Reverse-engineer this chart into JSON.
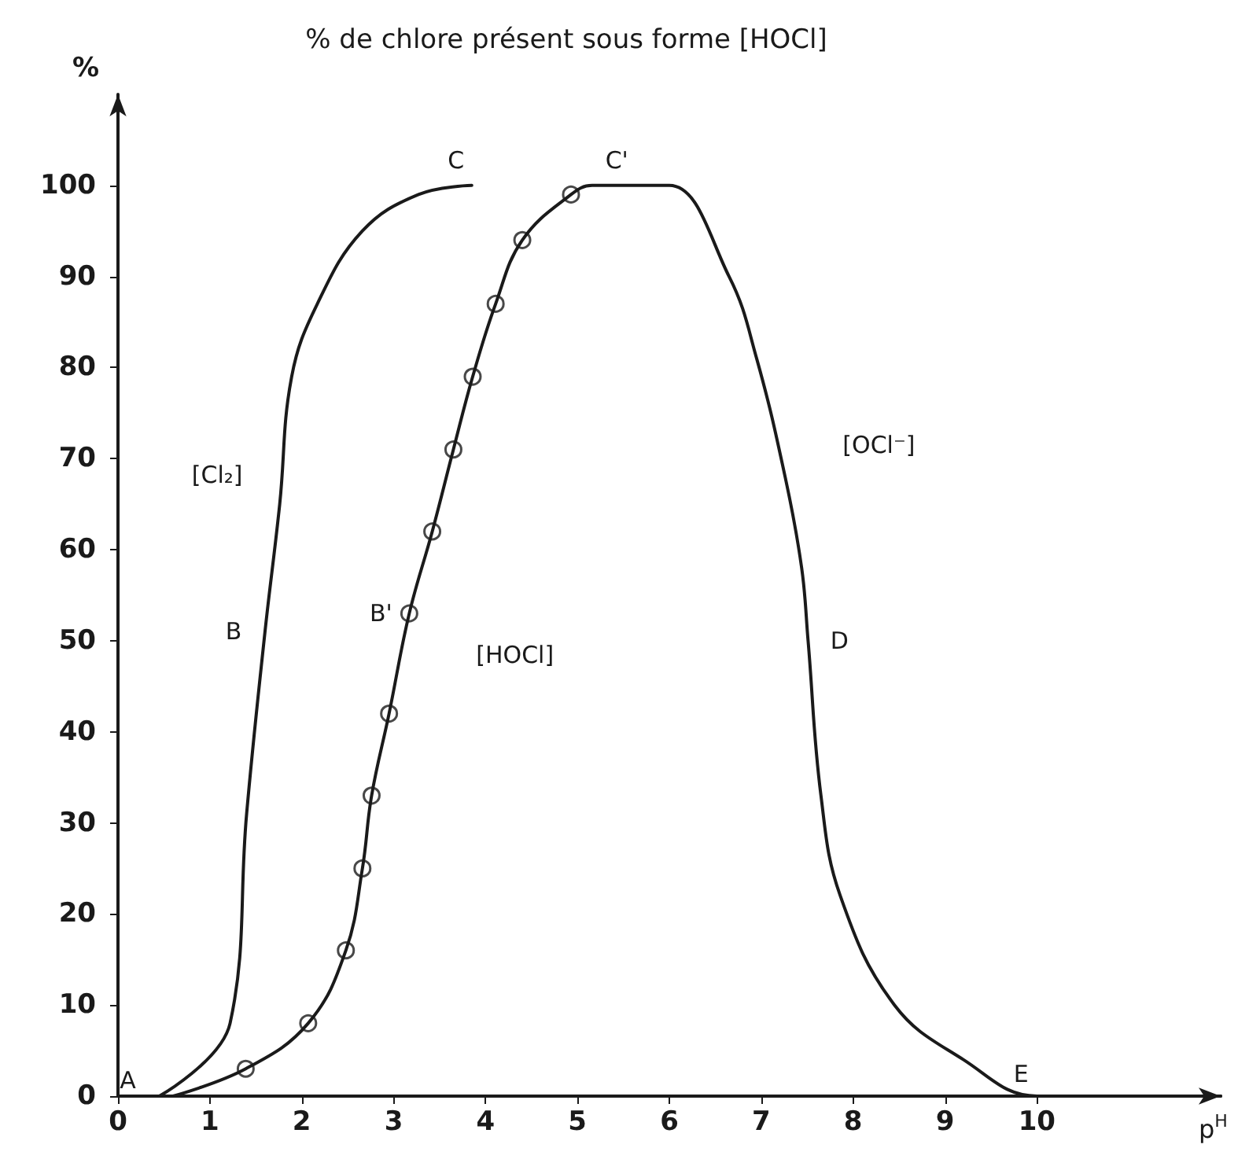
{
  "chart_data": {
    "type": "line",
    "title": "% de chlore présent sous forme [HOCl]",
    "xlabel": "p$^{H}$",
    "ylabel": "%",
    "xlim": [
      0,
      12
    ],
    "ylim": [
      0,
      110
    ],
    "xticks": [
      0,
      1,
      2,
      3,
      4,
      5,
      6,
      7,
      8,
      9,
      10
    ],
    "yticks": [
      0,
      10,
      20,
      30,
      40,
      50,
      60,
      70,
      80,
      90,
      100
    ],
    "grid": false,
    "line_style": "solid",
    "series": [
      {
        "color": "#1a1a1a",
        "marker": "none",
        "x": [
          0.45,
          1.22,
          1.4,
          1.6,
          1.76,
          1.89,
          2.17,
          2.66,
          3.27,
          3.85
        ],
        "values": [
          0,
          8,
          31,
          51,
          65,
          79,
          87,
          95,
          99,
          100
        ]
      },
      {
        "color": "#1a1a1a",
        "marker": "none",
        "x": [
          0.6,
          1.39,
          2.07,
          2.48,
          2.66,
          2.76,
          2.95,
          3.17,
          3.42,
          3.65,
          3.86,
          4.11,
          4.4,
          4.93,
          5.16,
          5.6,
          6,
          6.65,
          6.95,
          7.26,
          7.44,
          7.51,
          7.65,
          7.86,
          8.45,
          9.2,
          10,
          12
        ],
        "values": [
          0,
          3,
          8,
          16,
          25,
          33,
          42,
          53,
          62,
          71,
          79,
          87,
          94,
          99,
          100,
          100,
          100,
          90,
          81,
          68,
          58,
          50,
          33,
          22,
          10,
          4,
          0,
          0
        ]
      },
      {
        "type": "scatter",
        "color": "#1a1a1a",
        "marker": "circle",
        "x": [
          1.39,
          2.07,
          2.48,
          2.66,
          2.76,
          2.95,
          3.17,
          3.42,
          3.65,
          3.86,
          4.11,
          4.4,
          4.93
        ],
        "values": [
          3,
          8,
          16,
          25,
          33,
          42,
          53,
          62,
          71,
          79,
          87,
          94,
          99
        ]
      }
    ],
    "annotations": [
      {
        "text": "A",
        "x": 0.45,
        "y": 0
      },
      {
        "text": "B",
        "x": 1.6,
        "y": 51
      },
      {
        "text": "C",
        "x": 3.85,
        "y": 100
      },
      {
        "text": "B'",
        "x": 3.17,
        "y": 53
      },
      {
        "text": "C'",
        "x": 5.6,
        "y": 100
      },
      {
        "text": "D",
        "x": 7.51,
        "y": 50
      },
      {
        "text": "E",
        "x": 10,
        "y": 0
      },
      "[Cl₂]",
      "[HOCl]",
      "[OCl⁻]"
    ]
  }
}
